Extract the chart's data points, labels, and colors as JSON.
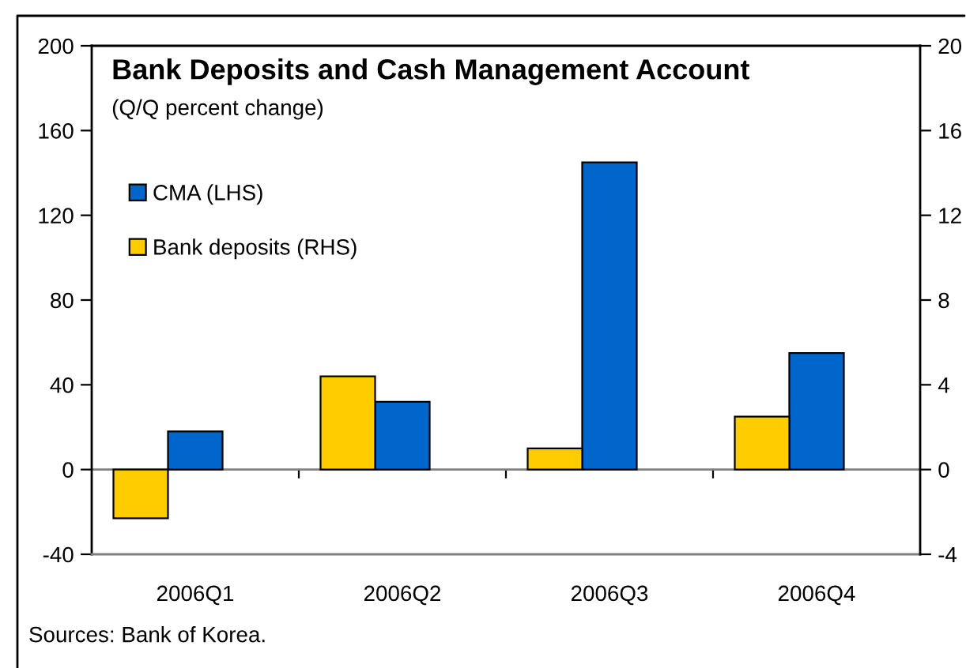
{
  "chart_data": {
    "type": "bar",
    "title": "Bank Deposits and Cash Management Account",
    "subtitle": "(Q/Q percent change)",
    "categories": [
      "2006Q1",
      "2006Q2",
      "2006Q3",
      "2006Q4"
    ],
    "series": [
      {
        "name": "Bank deposits (RHS)",
        "color": "#ffcc00",
        "axis": "y2",
        "values": [
          -2.3,
          4.4,
          1.0,
          2.5
        ]
      },
      {
        "name": "CMA (LHS)",
        "color": "#0066cc",
        "values": [
          18,
          32,
          145,
          55
        ]
      }
    ],
    "ylim": [
      -40,
      200
    ],
    "yticks": [
      -40,
      0,
      40,
      80,
      120,
      160,
      200
    ],
    "y2lim": [
      -4,
      20
    ],
    "y2ticks": [
      -4,
      0,
      4,
      8,
      12,
      16,
      20
    ],
    "ref_lines": [
      {
        "axis": "y",
        "value": 0,
        "color": "#808080"
      }
    ],
    "legend": "top left",
    "annotations": [
      "Sources: Bank of Korea."
    ]
  }
}
